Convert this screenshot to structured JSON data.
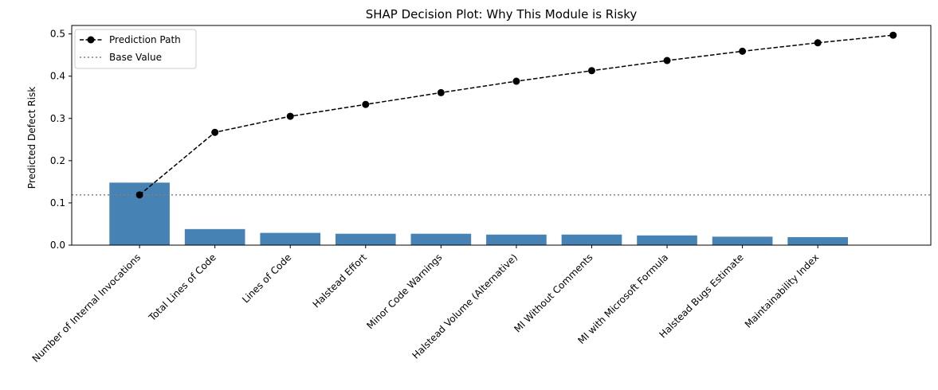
{
  "chart_data": {
    "type": "bar",
    "title": "SHAP Decision Plot: Why This Module is Risky",
    "xlabel": "",
    "ylabel": "Predicted Defect Risk",
    "ylim": [
      0,
      0.52
    ],
    "yticks": [
      "0.0",
      "0.1",
      "0.2",
      "0.3",
      "0.4",
      "0.5"
    ],
    "ytick_values": [
      0,
      0.1,
      0.2,
      0.3,
      0.4,
      0.5
    ],
    "categories": [
      "Number of Internal Invocations",
      "Total Lines of Code",
      "Lines of Code",
      "Halstead Effort",
      "Minor Code Warnings",
      "Halstead Volume (Alternative)",
      "MI Without Comments",
      "MI with Microsoft Formula",
      "Halstead Bugs Estimate",
      "Maintainability Index"
    ],
    "bar_values": [
      0.148,
      0.038,
      0.029,
      0.027,
      0.027,
      0.025,
      0.025,
      0.023,
      0.02,
      0.019
    ],
    "bar_color": "#4682b4",
    "path_x": [
      0,
      1,
      2,
      3,
      4,
      5,
      6,
      7,
      8,
      9,
      10
    ],
    "path_values": [
      0.119,
      0.267,
      0.305,
      0.333,
      0.361,
      0.388,
      0.413,
      0.437,
      0.459,
      0.479,
      0.497
    ],
    "base_value": 0.119,
    "legend": {
      "location": "upper-left",
      "entries": [
        {
          "label": "Prediction Path",
          "style": "dashed-line-with-dots",
          "color": "#000000"
        },
        {
          "label": "Base Value",
          "style": "dotted-line",
          "color": "#808080"
        }
      ]
    },
    "grid": false
  }
}
